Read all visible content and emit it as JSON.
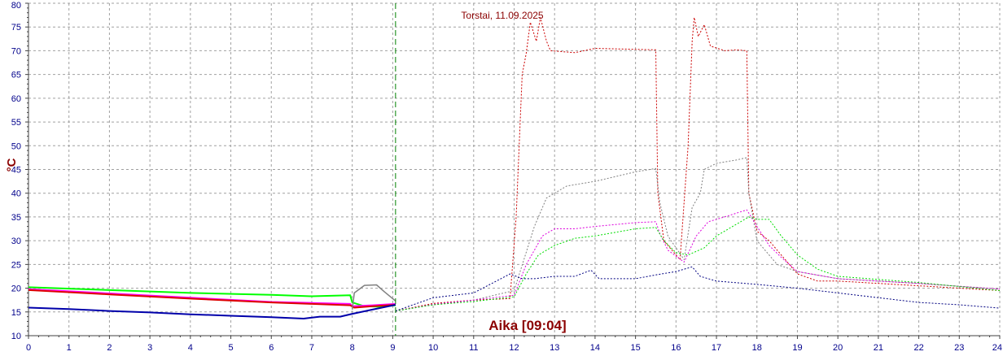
{
  "chart_data": {
    "type": "line",
    "title": "Torstai, 11.09.2025",
    "ylabel": "°C",
    "xlabel": "",
    "time_marker_label": "Aika [09:04]",
    "time_marker": 9.07,
    "xlim": [
      0,
      24
    ],
    "ylim": [
      10,
      80
    ],
    "x_ticks": [
      0,
      1,
      2,
      3,
      4,
      5,
      6,
      7,
      8,
      9,
      10,
      11,
      12,
      13,
      14,
      15,
      16,
      17,
      18,
      19,
      20,
      21,
      22,
      23,
      24
    ],
    "y_ticks": [
      10,
      15,
      20,
      25,
      30,
      35,
      40,
      45,
      50,
      55,
      60,
      65,
      70,
      75,
      80
    ],
    "grid": true,
    "colors": {
      "background": "#ffffff",
      "grid": "#a0a0a0",
      "axis": "#404040",
      "marker": "#008000",
      "text": "#8b0000",
      "ticks": "#00008b"
    },
    "series": [
      {
        "color": "#00ff00",
        "style": "solid",
        "width": 2,
        "points": [
          [
            0,
            20.2
          ],
          [
            2,
            19.6
          ],
          [
            4,
            19.0
          ],
          [
            6,
            18.6
          ],
          [
            7,
            18.3
          ],
          [
            7.95,
            18.5
          ],
          [
            8.0,
            17.0
          ],
          [
            8.3,
            16.2
          ],
          [
            8.7,
            16.1
          ],
          [
            9.07,
            16.4
          ]
        ]
      },
      {
        "color": "#ff00ff",
        "style": "solid",
        "width": 2,
        "points": [
          [
            0,
            19.8
          ],
          [
            2,
            18.9
          ],
          [
            4,
            18.0
          ],
          [
            6,
            17.1
          ],
          [
            7,
            16.9
          ],
          [
            7.95,
            16.7
          ],
          [
            8.0,
            16.2
          ],
          [
            8.5,
            16.4
          ],
          [
            9.07,
            16.7
          ]
        ]
      },
      {
        "color": "#dd0000",
        "style": "solid",
        "width": 2,
        "points": [
          [
            0,
            19.6
          ],
          [
            2,
            18.7
          ],
          [
            4,
            17.8
          ],
          [
            6,
            17.0
          ],
          [
            7,
            16.7
          ],
          [
            7.95,
            16.4
          ],
          [
            8.05,
            15.9
          ],
          [
            8.5,
            16.2
          ],
          [
            9.07,
            16.5
          ]
        ]
      },
      {
        "color": "#0000aa",
        "style": "solid",
        "width": 2,
        "points": [
          [
            0,
            15.9
          ],
          [
            1,
            15.6
          ],
          [
            2,
            15.2
          ],
          [
            3,
            14.9
          ],
          [
            4,
            14.5
          ],
          [
            5,
            14.2
          ],
          [
            6,
            13.9
          ],
          [
            6.8,
            13.6
          ],
          [
            7.2,
            14.0
          ],
          [
            7.7,
            14.0
          ],
          [
            8.0,
            14.6
          ],
          [
            8.5,
            15.5
          ],
          [
            9.07,
            16.5
          ]
        ]
      },
      {
        "color": "#808080",
        "style": "solid",
        "width": 1.5,
        "points": [
          [
            8.0,
            15.5
          ],
          [
            8.05,
            19.0
          ],
          [
            8.3,
            20.6
          ],
          [
            8.6,
            20.7
          ],
          [
            8.8,
            19.2
          ],
          [
            9.07,
            17.3
          ]
        ]
      },
      {
        "color": "#cc0000",
        "style": "dotted",
        "width": 1,
        "points": [
          [
            9.07,
            15.2
          ],
          [
            10,
            16.8
          ],
          [
            11,
            17.5
          ],
          [
            11.9,
            17.8
          ],
          [
            12.05,
            35
          ],
          [
            12.2,
            65
          ],
          [
            12.3,
            69.5
          ],
          [
            12.4,
            76
          ],
          [
            12.55,
            72
          ],
          [
            12.65,
            77
          ],
          [
            12.8,
            72
          ],
          [
            12.9,
            70
          ],
          [
            13.5,
            69.6
          ],
          [
            14,
            70.5
          ],
          [
            15.5,
            70.2
          ],
          [
            15.55,
            40
          ],
          [
            15.7,
            30
          ],
          [
            16.1,
            26
          ],
          [
            16.3,
            50
          ],
          [
            16.4,
            72
          ],
          [
            16.45,
            77
          ],
          [
            16.55,
            73
          ],
          [
            16.7,
            75.5
          ],
          [
            16.85,
            71
          ],
          [
            17.2,
            70
          ],
          [
            17.5,
            70.2
          ],
          [
            17.75,
            70
          ],
          [
            17.8,
            40
          ],
          [
            18,
            32
          ],
          [
            18.3,
            30
          ],
          [
            18.6,
            27
          ],
          [
            19,
            23
          ],
          [
            19.5,
            21.5
          ],
          [
            20,
            21.5
          ],
          [
            22,
            20.5
          ],
          [
            24,
            19.5
          ]
        ]
      },
      {
        "color": "#808080",
        "style": "dotted",
        "width": 1,
        "points": [
          [
            9.07,
            15.2
          ],
          [
            10,
            16.5
          ],
          [
            11,
            17.5
          ],
          [
            12,
            19.5
          ],
          [
            12.5,
            33
          ],
          [
            12.8,
            39
          ],
          [
            13.3,
            41.5
          ],
          [
            14,
            42.5
          ],
          [
            14.5,
            43.5
          ],
          [
            15,
            44.5
          ],
          [
            15.5,
            45.2
          ],
          [
            15.6,
            38
          ],
          [
            15.8,
            31
          ],
          [
            16.2,
            26
          ],
          [
            16.4,
            37
          ],
          [
            16.6,
            40
          ],
          [
            16.7,
            45
          ],
          [
            17,
            46.3
          ],
          [
            17.5,
            47
          ],
          [
            17.75,
            47.5
          ],
          [
            17.8,
            40
          ],
          [
            18,
            30
          ],
          [
            18.5,
            25
          ],
          [
            19,
            23.5
          ],
          [
            20,
            22
          ],
          [
            22,
            21
          ],
          [
            24,
            19.8
          ]
        ]
      },
      {
        "color": "#dd00dd",
        "style": "dotted",
        "width": 1,
        "points": [
          [
            9.07,
            15.2
          ],
          [
            10,
            16.6
          ],
          [
            11,
            17.5
          ],
          [
            12,
            18.5
          ],
          [
            12.3,
            25
          ],
          [
            12.7,
            31
          ],
          [
            13,
            32.5
          ],
          [
            13.5,
            32.5
          ],
          [
            14,
            33
          ],
          [
            15,
            33.8
          ],
          [
            15.5,
            34
          ],
          [
            15.6,
            31.5
          ],
          [
            15.8,
            28
          ],
          [
            16.2,
            25.5
          ],
          [
            16.5,
            31
          ],
          [
            16.8,
            34
          ],
          [
            17.2,
            35
          ],
          [
            17.75,
            36.5
          ],
          [
            18,
            33
          ],
          [
            18.3,
            29
          ],
          [
            18.6,
            26.5
          ],
          [
            19,
            23.5
          ],
          [
            20,
            22
          ],
          [
            22,
            21
          ],
          [
            24,
            19.8
          ]
        ]
      },
      {
        "color": "#00dd00",
        "style": "dotted",
        "width": 1,
        "points": [
          [
            9.07,
            15.2
          ],
          [
            10,
            16.5
          ],
          [
            11,
            17.2
          ],
          [
            12,
            18.2
          ],
          [
            12.3,
            23
          ],
          [
            12.6,
            27
          ],
          [
            13,
            29
          ],
          [
            13.5,
            30.5
          ],
          [
            14,
            31
          ],
          [
            15,
            32.5
          ],
          [
            15.5,
            32.8
          ],
          [
            15.7,
            30
          ],
          [
            16,
            27.5
          ],
          [
            16.3,
            27
          ],
          [
            16.7,
            28.5
          ],
          [
            17,
            31
          ],
          [
            17.4,
            33
          ],
          [
            17.8,
            35
          ],
          [
            18,
            34.5
          ],
          [
            18.3,
            34.5
          ],
          [
            18.6,
            31
          ],
          [
            19,
            27
          ],
          [
            19.5,
            24
          ],
          [
            20,
            22.5
          ],
          [
            22,
            21.2
          ],
          [
            24,
            19.5
          ]
        ]
      },
      {
        "color": "#000080",
        "style": "dotted",
        "width": 1,
        "points": [
          [
            9.07,
            15.2
          ],
          [
            10,
            18.0
          ],
          [
            11,
            19.0
          ],
          [
            11.9,
            23
          ],
          [
            12.2,
            22
          ],
          [
            12.5,
            22
          ],
          [
            13,
            22.5
          ],
          [
            13.5,
            22.5
          ],
          [
            13.9,
            23.8
          ],
          [
            14.1,
            22
          ],
          [
            15,
            22
          ],
          [
            15.5,
            22.8
          ],
          [
            16,
            23.5
          ],
          [
            16.4,
            24.5
          ],
          [
            16.6,
            22.5
          ],
          [
            17,
            21.5
          ],
          [
            18,
            20.8
          ],
          [
            19,
            20
          ],
          [
            20,
            19
          ],
          [
            21,
            18
          ],
          [
            22,
            17
          ],
          [
            23,
            16.5
          ],
          [
            24,
            15.8
          ]
        ]
      }
    ]
  }
}
